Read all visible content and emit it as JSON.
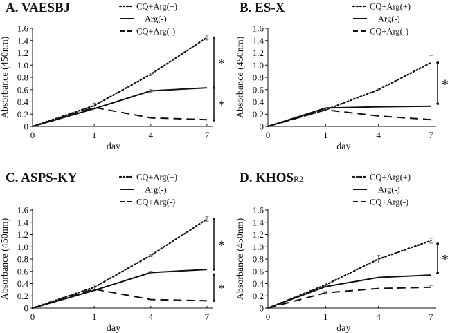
{
  "chart_data": [
    {
      "type": "line",
      "title": "A. VAESBJ",
      "title_sub": "",
      "xlabel": "day",
      "ylabel": "Absorbance (450nm)",
      "categories": [
        "0",
        "1",
        "4",
        "7"
      ],
      "yticks": [
        "0",
        "0.2",
        "0.4",
        "0.6",
        "0.8",
        "1.0",
        "1.2",
        "1.4",
        "1.6"
      ],
      "ylim": [
        0,
        1.6
      ],
      "series": [
        {
          "name": "CQ+Arg(+)",
          "style": "dotted",
          "values": [
            0,
            0.34,
            0.85,
            1.45
          ],
          "errors": [
            0,
            0.04,
            0.02,
            0.04
          ]
        },
        {
          "name": "Arg(-)",
          "style": "solid",
          "values": [
            0,
            0.29,
            0.58,
            0.63
          ],
          "errors": [
            0,
            0,
            0.02,
            0
          ]
        },
        {
          "name": "CQ+Arg(-)",
          "style": "dashed",
          "values": [
            0,
            0.31,
            0.14,
            0.11
          ],
          "errors": [
            0,
            0,
            0,
            0
          ]
        }
      ],
      "significance": [
        {
          "from": 1.45,
          "to": 0.63,
          "label": "*"
        },
        {
          "from": 0.63,
          "to": 0.1,
          "label": "*"
        }
      ]
    },
    {
      "type": "line",
      "title": "B. ES-X",
      "title_sub": "",
      "xlabel": "day",
      "ylabel": "Absorbance (450nm)",
      "categories": [
        "0",
        "1",
        "4",
        "7"
      ],
      "yticks": [
        "0",
        "0.2",
        "0.4",
        "0.6",
        "0.8",
        "1.0",
        "1.2",
        "1.4",
        "1.6"
      ],
      "ylim": [
        0,
        1.6
      ],
      "series": [
        {
          "name": "CQ+Arg(+)",
          "style": "dotted",
          "values": [
            0,
            0.27,
            0.6,
            1.04
          ],
          "errors": [
            0,
            0,
            0.02,
            0.12
          ]
        },
        {
          "name": "Arg(-)",
          "style": "solid",
          "values": [
            0,
            0.3,
            0.32,
            0.33
          ],
          "errors": [
            0,
            0,
            0,
            0
          ]
        },
        {
          "name": "CQ+Arg(-)",
          "style": "dashed",
          "values": [
            0,
            0.27,
            0.17,
            0.11
          ],
          "errors": [
            0,
            0,
            0,
            0
          ]
        }
      ],
      "significance": [
        {
          "from": 1.04,
          "to": 0.37,
          "label": "*"
        }
      ]
    },
    {
      "type": "line",
      "title": "C. ASPS-KY",
      "title_sub": "",
      "xlabel": "day",
      "ylabel": "Absorbance (450nm)",
      "categories": [
        "0",
        "1",
        "4",
        "7"
      ],
      "yticks": [
        "0",
        "0.2",
        "0.4",
        "0.6",
        "0.8",
        "1.0",
        "1.2",
        "1.4",
        "1.6"
      ],
      "ylim": [
        0,
        1.6
      ],
      "series": [
        {
          "name": "CQ+Arg(+)",
          "style": "dotted",
          "values": [
            0,
            0.34,
            0.86,
            1.45
          ],
          "errors": [
            0,
            0.04,
            0.02,
            0.04
          ]
        },
        {
          "name": "Arg(-)",
          "style": "solid",
          "values": [
            0,
            0.29,
            0.58,
            0.63
          ],
          "errors": [
            0,
            0,
            0.02,
            0
          ]
        },
        {
          "name": "CQ+Arg(-)",
          "style": "dashed",
          "values": [
            0,
            0.31,
            0.14,
            0.12
          ],
          "errors": [
            0,
            0,
            0,
            0
          ]
        }
      ],
      "significance": [
        {
          "from": 1.45,
          "to": 0.63,
          "label": "*"
        },
        {
          "from": 0.55,
          "to": 0.12,
          "label": "*"
        }
      ]
    },
    {
      "type": "line",
      "title": "D. KHOS",
      "title_sub": "R2",
      "xlabel": "day",
      "ylabel": "Absorbance (450nm)",
      "categories": [
        "0",
        "1",
        "4",
        "7"
      ],
      "yticks": [
        "0",
        "0.2",
        "0.4",
        "0.6",
        "0.8",
        "1.0",
        "1.2",
        "1.4",
        "1.6"
      ],
      "ylim": [
        0,
        1.6
      ],
      "series": [
        {
          "name": "CQ+Arg(+)",
          "style": "dotted",
          "values": [
            0,
            0.38,
            0.8,
            1.1
          ],
          "errors": [
            0,
            0.03,
            0.06,
            0.04
          ]
        },
        {
          "name": "Arg(-)",
          "style": "solid",
          "values": [
            0,
            0.35,
            0.5,
            0.54
          ],
          "errors": [
            0,
            0,
            0,
            0
          ]
        },
        {
          "name": "CQ+Arg(-)",
          "style": "dashed",
          "values": [
            0,
            0.25,
            0.32,
            0.34
          ],
          "errors": [
            0,
            0.02,
            0,
            0.03
          ]
        }
      ],
      "significance": [
        {
          "from": 1.05,
          "to": 0.57,
          "label": "*"
        }
      ]
    }
  ]
}
